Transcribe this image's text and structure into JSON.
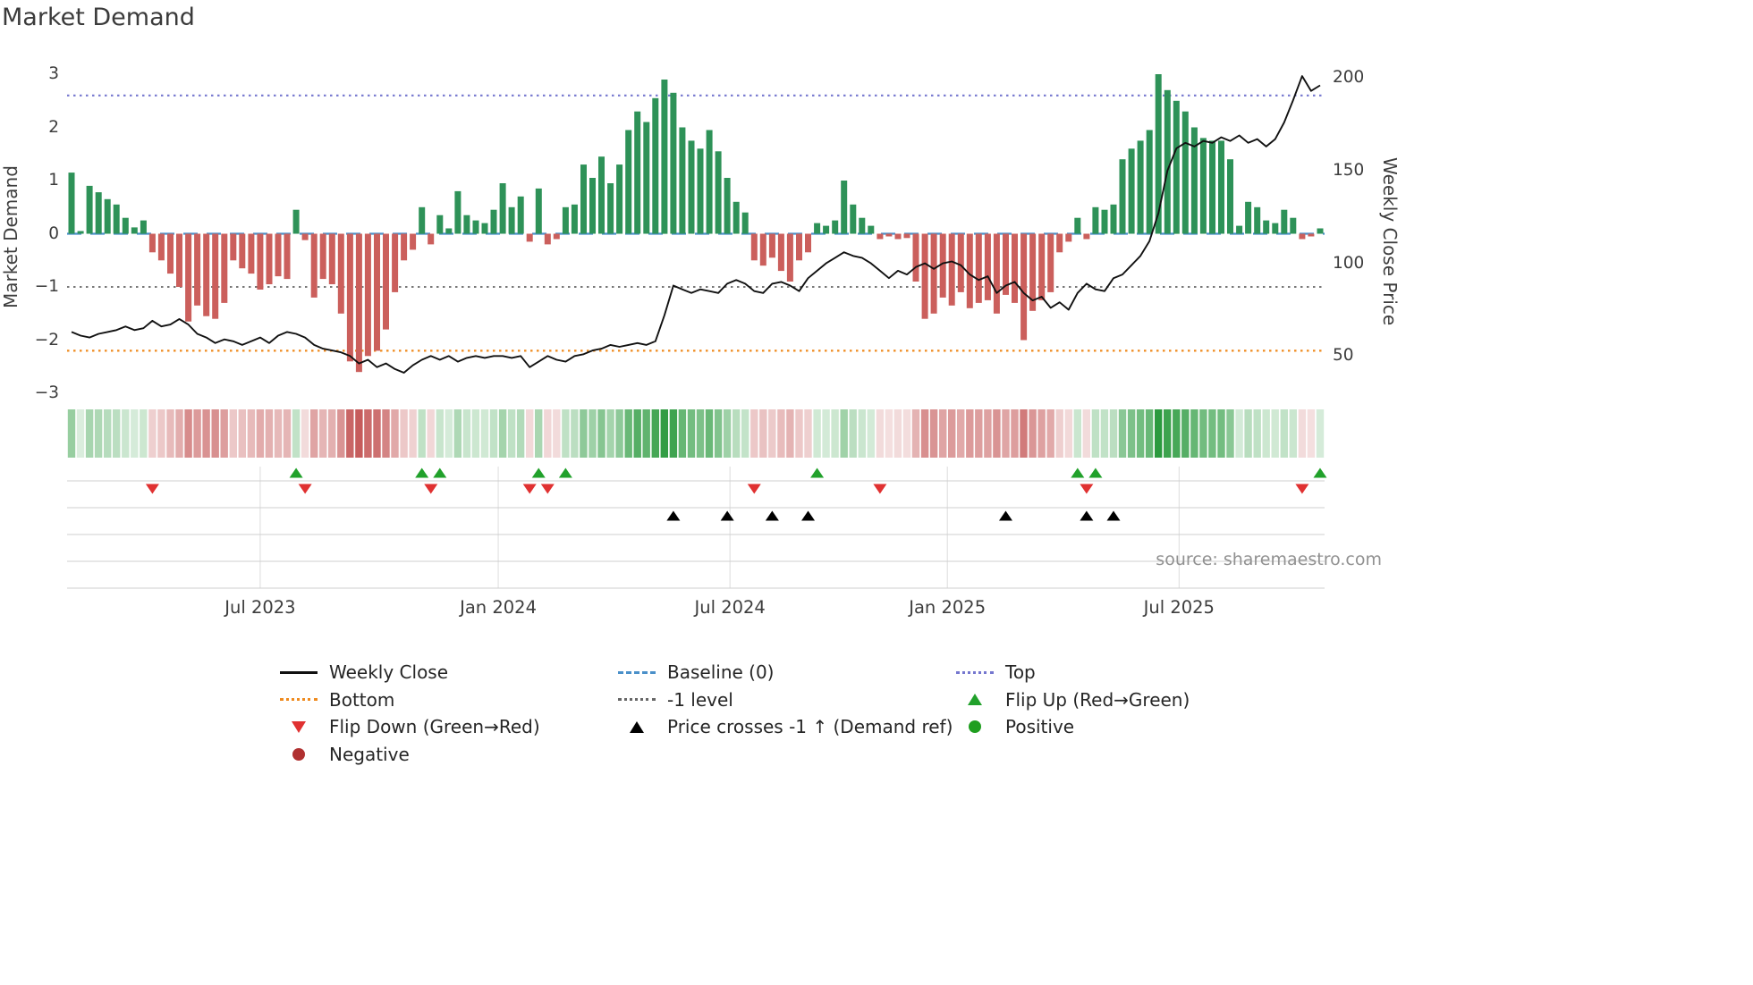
{
  "title": "Market Demand",
  "source": "source: sharemaestro.com",
  "colors": {
    "bar_positive": "#2e9258",
    "bar_negative": "#cb5f5c",
    "price_line": "#111111",
    "flip_up": "#21a12b",
    "flip_down": "#e03131",
    "price_cross": "#000000",
    "heat_positive": "#229636",
    "heat_negative": "#bc4040"
  },
  "chart_data": {
    "type": "bar+line",
    "x": {
      "unit": "week",
      "ticks": [
        {
          "label": "Jul 2023",
          "pos": 21
        },
        {
          "label": "Jan 2024",
          "pos": 47.5
        },
        {
          "label": "Jul 2024",
          "pos": 73.3
        },
        {
          "label": "Jan 2025",
          "pos": 97.5
        },
        {
          "label": "Jul 2025",
          "pos": 123.3
        }
      ]
    },
    "left_axis": {
      "label": "Market Demand",
      "ticks": [
        3,
        2,
        1,
        0,
        -1,
        -2,
        -3
      ],
      "range": [
        -3,
        3
      ]
    },
    "right_axis": {
      "label": "Weekly Close Price",
      "ticks": [
        200,
        150,
        100,
        50
      ],
      "map_price_to_demand": [
        [
          50,
          -2.3
        ],
        [
          200,
          2.93
        ]
      ]
    },
    "series": [
      {
        "name": "Market Demand",
        "type": "bar",
        "axis": "left",
        "values": [
          1.15,
          0.05,
          0.9,
          0.78,
          0.65,
          0.55,
          0.3,
          0.12,
          0.25,
          -0.35,
          -0.5,
          -0.75,
          -1.0,
          -1.65,
          -1.35,
          -1.55,
          -1.6,
          -1.3,
          -0.5,
          -0.65,
          -0.75,
          -1.05,
          -0.95,
          -0.8,
          -0.85,
          0.45,
          -0.12,
          -1.2,
          -0.85,
          -0.95,
          -1.5,
          -2.4,
          -2.6,
          -2.3,
          -2.2,
          -1.8,
          -1.1,
          -0.5,
          -0.3,
          0.5,
          -0.2,
          0.35,
          0.1,
          0.8,
          0.35,
          0.25,
          0.2,
          0.45,
          0.95,
          0.5,
          0.7,
          -0.15,
          0.85,
          -0.2,
          -0.1,
          0.5,
          0.55,
          1.3,
          1.05,
          1.45,
          0.95,
          1.3,
          1.95,
          2.3,
          2.1,
          2.55,
          2.9,
          2.65,
          2.0,
          1.75,
          1.6,
          1.95,
          1.55,
          1.05,
          0.6,
          0.4,
          -0.5,
          -0.6,
          -0.45,
          -0.7,
          -0.9,
          -0.5,
          -0.35,
          0.2,
          0.15,
          0.25,
          1.0,
          0.55,
          0.3,
          0.15,
          -0.1,
          -0.05,
          -0.1,
          -0.08,
          -0.9,
          -1.6,
          -1.5,
          -1.2,
          -1.35,
          -1.1,
          -1.4,
          -1.3,
          -1.25,
          -1.5,
          -1.15,
          -1.3,
          -2.0,
          -1.45,
          -1.25,
          -1.1,
          -0.35,
          -0.15,
          0.3,
          -0.1,
          0.5,
          0.45,
          0.55,
          1.4,
          1.6,
          1.75,
          1.95,
          3.0,
          2.7,
          2.5,
          2.3,
          2.0,
          1.8,
          1.75,
          1.75,
          1.4,
          0.15,
          0.6,
          0.5,
          0.25,
          0.2,
          0.45,
          0.3,
          -0.1,
          -0.05,
          0.1
        ]
      },
      {
        "name": "Weekly Close",
        "type": "line",
        "axis": "right",
        "values": [
          63,
          61,
          60,
          62,
          63,
          64,
          66,
          64,
          65,
          69,
          66,
          67,
          70,
          67,
          62,
          60,
          57,
          59,
          58,
          56,
          58,
          60,
          57,
          61,
          63,
          62,
          60,
          56,
          54,
          53,
          52,
          50,
          46,
          48,
          44,
          46,
          43,
          41,
          45,
          48,
          50,
          48,
          50,
          47,
          49,
          50,
          49,
          50,
          50,
          49,
          50,
          44,
          47,
          50,
          48,
          47,
          50,
          51,
          53,
          54,
          56,
          55,
          56,
          57,
          56,
          58,
          72,
          88,
          86,
          84,
          86,
          85,
          84,
          89,
          91,
          89,
          85,
          84,
          89,
          90,
          88,
          85,
          92,
          96,
          100,
          103,
          106,
          104,
          103,
          100,
          96,
          92,
          96,
          94,
          98,
          100,
          97,
          100,
          101,
          99,
          94,
          91,
          93,
          84,
          88,
          90,
          84,
          80,
          82,
          76,
          79,
          75,
          84,
          89,
          86,
          85,
          92,
          94,
          99,
          104,
          112,
          127,
          150,
          162,
          165,
          163,
          166,
          165,
          168,
          166,
          169,
          165,
          167,
          163,
          167,
          176,
          188,
          201,
          193,
          196
        ]
      }
    ],
    "reference_lines": [
      {
        "name": "Top",
        "value": 2.6,
        "style": "dotted",
        "color": "#7577cf",
        "width": 2.2
      },
      {
        "name": "Baseline (0)",
        "value": 0,
        "style": "dashed",
        "color": "#4a90c9",
        "width": 2.2
      },
      {
        "name": "-1 level",
        "value": -1,
        "style": "dotted",
        "color": "#666666",
        "width": 1.8
      },
      {
        "name": "Bottom",
        "value": -2.2,
        "style": "dotted",
        "color": "#ef8a1e",
        "width": 2.2
      }
    ],
    "markers": {
      "flip_up": {
        "label": "Flip Up (Red→Green)",
        "weeks": [
          25,
          39,
          41,
          52,
          55,
          83,
          112,
          114,
          139
        ]
      },
      "flip_down": {
        "label": "Flip Down (Green→Red)",
        "weeks": [
          9,
          26,
          40,
          51,
          53,
          76,
          90,
          113,
          137
        ]
      },
      "price_cross": {
        "label": "Price crosses -1 ↑ (Demand ref)",
        "weeks": [
          67,
          73,
          78,
          82,
          104,
          113,
          116
        ]
      }
    },
    "heatmap": {
      "description": "weekly demand intensity strip, green positive / red negative"
    }
  },
  "legend": {
    "items": [
      {
        "label": "Weekly Close",
        "symbol": "solid-line",
        "color": "#111111"
      },
      {
        "label": "Baseline (0)",
        "symbol": "dashed-line",
        "color": "#4a90c9"
      },
      {
        "label": "Top",
        "symbol": "dotted-line",
        "color": "#7577cf"
      },
      {
        "label": "Bottom",
        "symbol": "dotted-line",
        "color": "#ef8a1e"
      },
      {
        "label": "-1 level",
        "symbol": "dotted-line",
        "color": "#666666"
      },
      {
        "label": "Flip Up (Red→Green)",
        "symbol": "triangle-up",
        "color": "#21a12b"
      },
      {
        "label": "Flip Down (Green→Red)",
        "symbol": "triangle-down",
        "color": "#e03131"
      },
      {
        "label": "Price crosses -1 ↑ (Demand ref)",
        "symbol": "triangle-up",
        "color": "#000000"
      },
      {
        "label": "Positive",
        "symbol": "circle",
        "color": "#1f9e1f"
      },
      {
        "label": "Negative",
        "symbol": "circle",
        "color": "#b03030"
      }
    ]
  }
}
